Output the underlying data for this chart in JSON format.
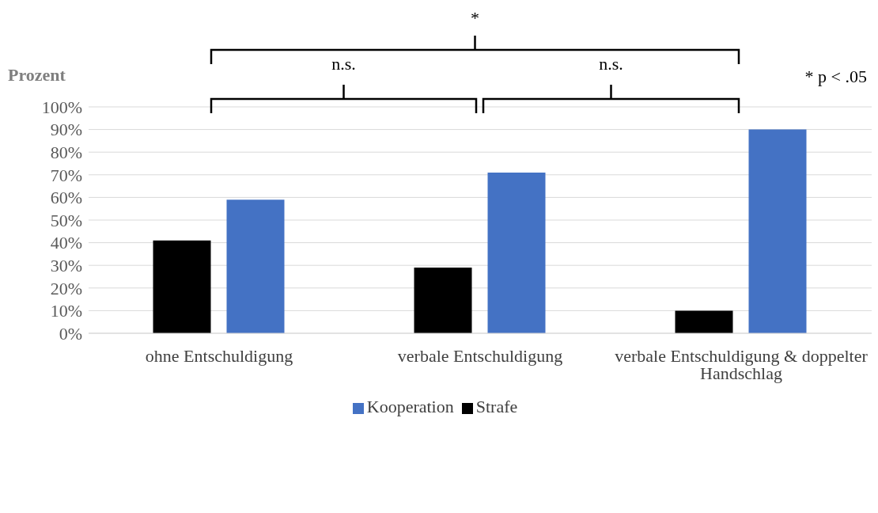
{
  "chart_data": {
    "type": "bar",
    "ylabel": "Prozent",
    "categories": [
      "ohne Entschuldigung",
      "verbale Entschuldigung",
      "verbale Entschuldigung & doppelter Handschlag"
    ],
    "series": [
      {
        "name": "Strafe",
        "color": "#000000",
        "values": [
          41,
          29,
          10
        ]
      },
      {
        "name": "Kooperation",
        "color": "#4472c4",
        "values": [
          59,
          71,
          90
        ]
      }
    ],
    "ylim": [
      0,
      100
    ],
    "yticks": [
      {
        "value": 0,
        "label": "0%"
      },
      {
        "value": 10,
        "label": "10%"
      },
      {
        "value": 20,
        "label": "20%"
      },
      {
        "value": 30,
        "label": "30%"
      },
      {
        "value": 40,
        "label": "40%"
      },
      {
        "value": 50,
        "label": "50%"
      },
      {
        "value": 60,
        "label": "60%"
      },
      {
        "value": 70,
        "label": "70%"
      },
      {
        "value": 80,
        "label": "80%"
      },
      {
        "value": 90,
        "label": "90%"
      },
      {
        "value": 100,
        "label": "100%"
      }
    ],
    "grid": "y",
    "legend": "bottom",
    "annotations": [
      "*",
      "n.s.",
      "n.s.",
      "* p < .05"
    ]
  }
}
